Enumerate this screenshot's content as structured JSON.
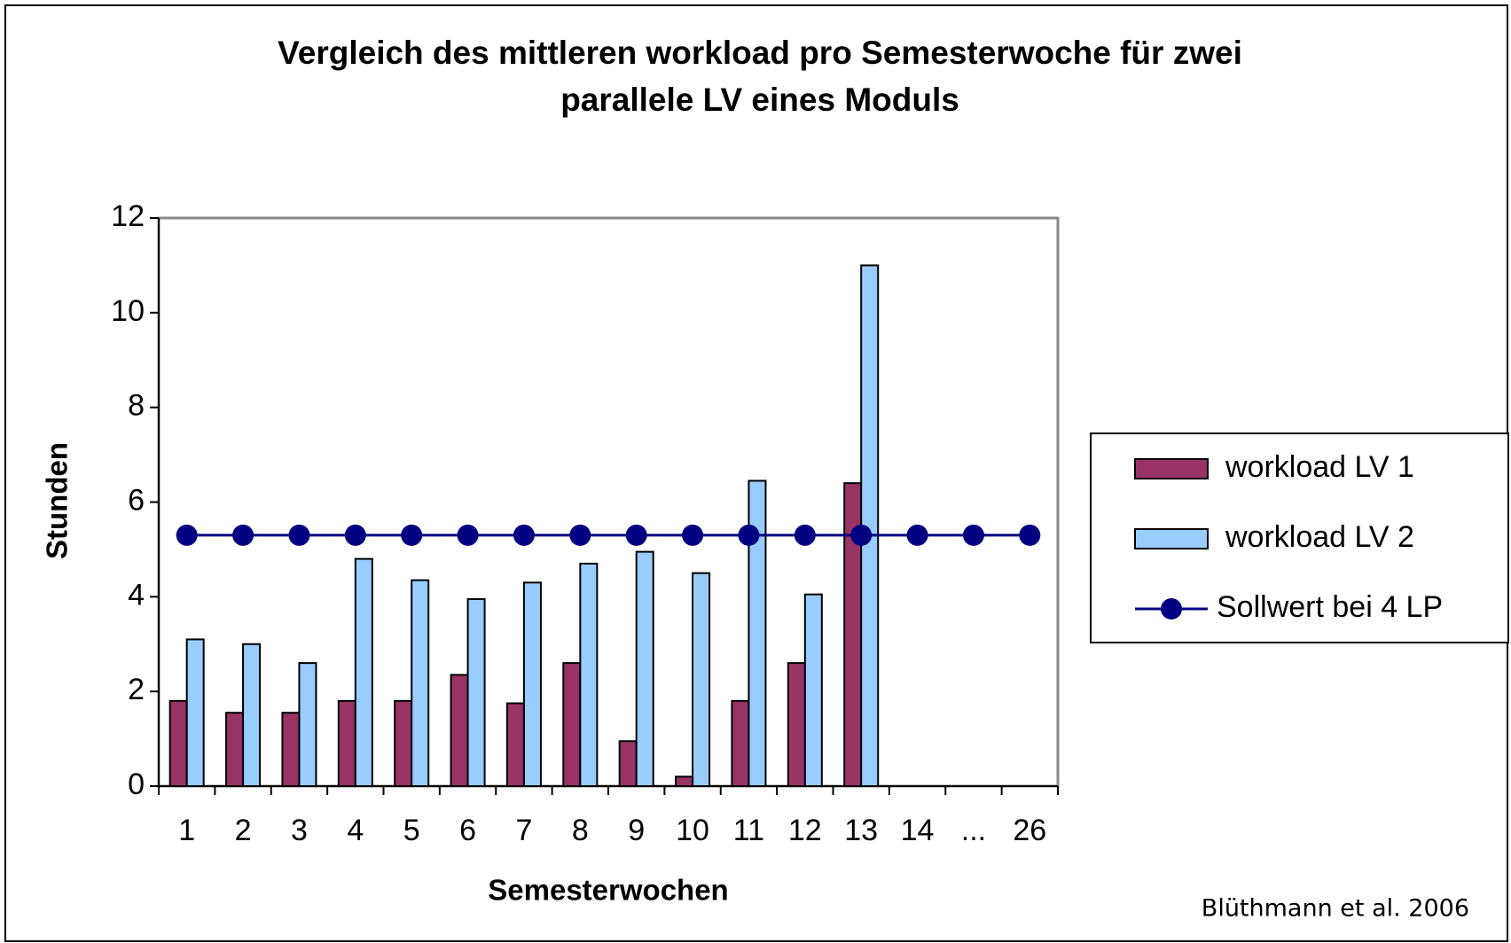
{
  "chart_data": {
    "type": "bar",
    "title": [
      "Vergleich des mittleren workload pro Semesterwoche für zwei",
      "parallele LV eines Moduls"
    ],
    "x_label": "Semesterwochen",
    "y_label": "Stunden",
    "source": "Blüthmann et al. 2006",
    "categories": [
      "1",
      "2",
      "3",
      "4",
      "5",
      "6",
      "7",
      "8",
      "9",
      "10",
      "11",
      "12",
      "13",
      "14",
      "...",
      "26"
    ],
    "series": [
      {
        "name": "workload LV 1",
        "type": "bar",
        "color": "#993366",
        "values": [
          1.8,
          1.55,
          1.55,
          1.8,
          1.8,
          2.35,
          1.75,
          2.6,
          0.95,
          0.2,
          1.8,
          2.6,
          6.4,
          null,
          null,
          null
        ]
      },
      {
        "name": "workload LV 2",
        "type": "bar",
        "color": "#99ccff",
        "values": [
          3.1,
          3.0,
          2.6,
          4.8,
          4.35,
          3.95,
          4.3,
          4.7,
          4.95,
          4.5,
          6.45,
          4.05,
          11.0,
          null,
          null,
          null
        ]
      },
      {
        "name": "Sollwert bei 4 LP",
        "type": "line",
        "color": "#000080",
        "values": [
          5.3,
          5.3,
          5.3,
          5.3,
          5.3,
          5.3,
          5.3,
          5.3,
          5.3,
          5.3,
          5.3,
          5.3,
          5.3,
          5.3,
          5.3,
          5.3
        ]
      }
    ],
    "ylim": [
      0,
      12
    ],
    "yticks": [
      0,
      2,
      4,
      6,
      8,
      10,
      12
    ],
    "grid": false,
    "legend": "right"
  }
}
